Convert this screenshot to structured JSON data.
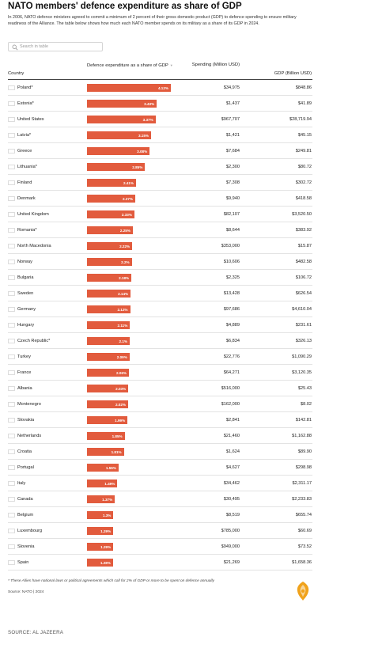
{
  "title": "NATO members' defence expenditure as share of GDP",
  "intro": "In 2006, NATO defence ministers agreed to commit a minimum of 2 percent of their gross domestic product (GDP) to defence spending to ensure military readiness of the Alliance. The table below shows how much each NATO member spends on its military as a share of its GDP in 2024.",
  "search": {
    "placeholder": "Search in table"
  },
  "columns": {
    "country": "Country",
    "share": "Defence expenditure as a share of GDP",
    "spending": "Spending (Million USD)",
    "gdp": "GDP (Billion USD)"
  },
  "colors": {
    "bar": "#e25b3d",
    "header_rule": "#444444",
    "row_rule": "#e3e3e3",
    "logo": "#f0a21b"
  },
  "chart_data": {
    "type": "table",
    "bar_max": 4.12,
    "rows": [
      {
        "country": "Poland*",
        "flag": "poland",
        "share": 4.12,
        "share_label": "4.12%",
        "spending": "$34,975",
        "gdp": "$848.86"
      },
      {
        "country": "Estonia*",
        "flag": "estonia",
        "share": 3.43,
        "share_label": "3.43%",
        "spending": "$1,437",
        "gdp": "$41.89"
      },
      {
        "country": "United States",
        "flag": "united-states",
        "share": 3.37,
        "share_label": "3.37%",
        "spending": "$967,707",
        "gdp": "$28,719.94"
      },
      {
        "country": "Latvia*",
        "flag": "latvia",
        "share": 3.15,
        "share_label": "3.15%",
        "spending": "$1,421",
        "gdp": "$45.15"
      },
      {
        "country": "Greece",
        "flag": "greece",
        "share": 3.08,
        "share_label": "3.08%",
        "spending": "$7,684",
        "gdp": "$249.81"
      },
      {
        "country": "Lithuania*",
        "flag": "lithuania",
        "share": 2.85,
        "share_label": "2.85%",
        "spending": "$2,300",
        "gdp": "$80.72"
      },
      {
        "country": "Finland",
        "flag": "finland",
        "share": 2.41,
        "share_label": "2.41%",
        "spending": "$7,308",
        "gdp": "$302.72"
      },
      {
        "country": "Denmark",
        "flag": "denmark",
        "share": 2.37,
        "share_label": "2.37%",
        "spending": "$9,940",
        "gdp": "$418.58"
      },
      {
        "country": "United Kingdom",
        "flag": "united-kingdom",
        "share": 2.33,
        "share_label": "2.33%",
        "spending": "$82,107",
        "gdp": "$3,520.50"
      },
      {
        "country": "Romania*",
        "flag": "romania",
        "share": 2.25,
        "share_label": "2.25%",
        "spending": "$8,644",
        "gdp": "$383.92"
      },
      {
        "country": "North Macedonia",
        "flag": "north-macedonia",
        "share": 2.22,
        "share_label": "2.22%",
        "spending": "$353,000",
        "gdp": "$15.87"
      },
      {
        "country": "Norway",
        "flag": "norway",
        "share": 2.2,
        "share_label": "2.2%",
        "spending": "$10,606",
        "gdp": "$482.58"
      },
      {
        "country": "Bulgaria",
        "flag": "bulgaria",
        "share": 2.18,
        "share_label": "2.18%",
        "spending": "$2,325",
        "gdp": "$106.72"
      },
      {
        "country": "Sweden",
        "flag": "sweden",
        "share": 2.14,
        "share_label": "2.14%",
        "spending": "$13,428",
        "gdp": "$626.54"
      },
      {
        "country": "Germany",
        "flag": "germany",
        "share": 2.12,
        "share_label": "2.12%",
        "spending": "$97,686",
        "gdp": "$4,610.04"
      },
      {
        "country": "Hungary",
        "flag": "hungary",
        "share": 2.11,
        "share_label": "2.11%",
        "spending": "$4,889",
        "gdp": "$231.61"
      },
      {
        "country": "Czech Republic*",
        "flag": "czech-republic",
        "share": 2.1,
        "share_label": "2.1%",
        "spending": "$6,834",
        "gdp": "$326.13"
      },
      {
        "country": "Turkey",
        "flag": "turkey",
        "share": 2.09,
        "share_label": "2.09%",
        "spending": "$22,776",
        "gdp": "$1,090.29"
      },
      {
        "country": "France",
        "flag": "france",
        "share": 2.06,
        "share_label": "2.06%",
        "spending": "$64,271",
        "gdp": "$3,120.35"
      },
      {
        "country": "Albania",
        "flag": "albania",
        "share": 2.03,
        "share_label": "2.03%",
        "spending": "$516,000",
        "gdp": "$25.43"
      },
      {
        "country": "Montenegro",
        "flag": "montenegro",
        "share": 2.02,
        "share_label": "2.02%",
        "spending": "$162,000",
        "gdp": "$8.02"
      },
      {
        "country": "Slovakia",
        "flag": "slovakia",
        "share": 1.99,
        "share_label": "1.99%",
        "spending": "$2,841",
        "gdp": "$142.81"
      },
      {
        "country": "Netherlands",
        "flag": "netherlands",
        "share": 1.85,
        "share_label": "1.85%",
        "spending": "$21,460",
        "gdp": "$1,162.88"
      },
      {
        "country": "Croatia",
        "flag": "croatia",
        "share": 1.81,
        "share_label": "1.81%",
        "spending": "$1,624",
        "gdp": "$89.90"
      },
      {
        "country": "Portugal",
        "flag": "portugal",
        "share": 1.55,
        "share_label": "1.55%",
        "spending": "$4,627",
        "gdp": "$298.98"
      },
      {
        "country": "Italy",
        "flag": "italy",
        "share": 1.49,
        "share_label": "1.49%",
        "spending": "$34,462",
        "gdp": "$2,311.17"
      },
      {
        "country": "Canada",
        "flag": "canada",
        "share": 1.37,
        "share_label": "1.37%",
        "spending": "$30,495",
        "gdp": "$2,233.83"
      },
      {
        "country": "Belgium",
        "flag": "belgium",
        "share": 1.3,
        "share_label": "1.3%",
        "spending": "$8,519",
        "gdp": "$655.74"
      },
      {
        "country": "Luxembourg",
        "flag": "luxembourg",
        "share": 1.29,
        "share_label": "1.29%",
        "spending": "$785,000",
        "gdp": "$60.69"
      },
      {
        "country": "Slovenia",
        "flag": "slovenia",
        "share": 1.29,
        "share_label": "1.29%",
        "spending": "$949,000",
        "gdp": "$73.52"
      },
      {
        "country": "Spain",
        "flag": "spain",
        "share": 1.28,
        "share_label": "1.28%",
        "spending": "$21,269",
        "gdp": "$1,658.36"
      }
    ]
  },
  "footnote": "* These Allies have national laws or political agreements which call for 2% of GDP or more to be spent on defence annually",
  "source_inner": "Source: NATO | 2024",
  "source_outer": "SOURCE: AL JAZEERA"
}
